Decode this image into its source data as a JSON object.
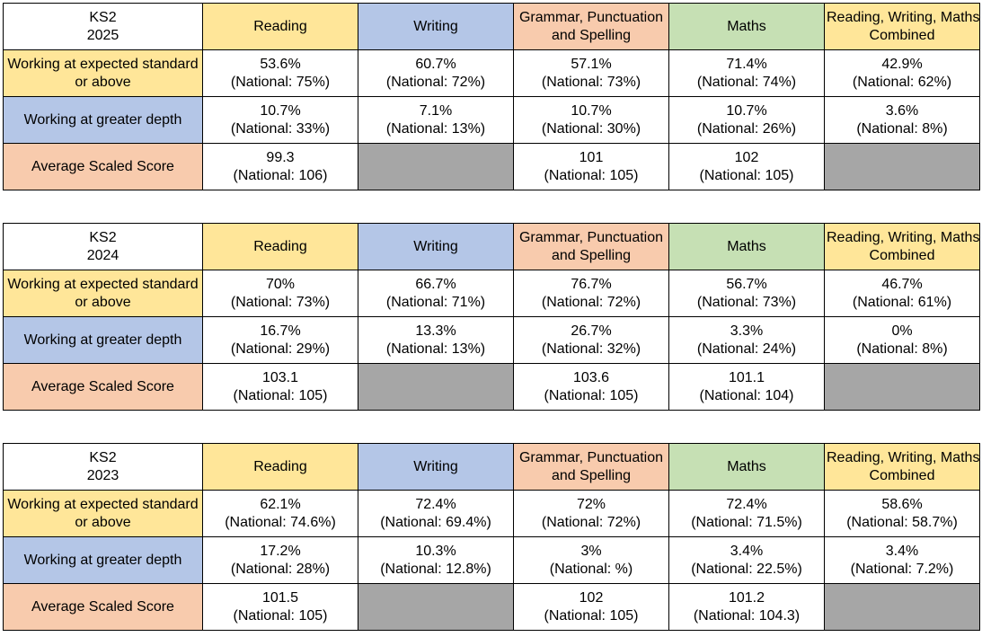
{
  "tables": [
    {
      "title_line1": "KS2",
      "title_line2": "2025",
      "headers": [
        {
          "line1": "Reading",
          "line2": ""
        },
        {
          "line1": "Writing",
          "line2": ""
        },
        {
          "line1": "Grammar, Punctuation",
          "line2": "and Spelling"
        },
        {
          "line1": "Maths",
          "line2": ""
        },
        {
          "line1": "Reading, Writing, Maths",
          "line2": "Combined"
        }
      ],
      "rows": [
        {
          "label_line1": "Working at expected standard",
          "label_line2": "or above",
          "cells": [
            {
              "value": "53.6%",
              "national": "(National: 75%)"
            },
            {
              "value": "60.7%",
              "national": "(National: 72%)"
            },
            {
              "value": "57.1%",
              "national": "(National: 73%)"
            },
            {
              "value": "71.4%",
              "national": "(National: 74%)"
            },
            {
              "value": "42.9%",
              "national": "(National: 62%)"
            }
          ]
        },
        {
          "label_line1": "Working at greater depth",
          "label_line2": "",
          "cells": [
            {
              "value": "10.7%",
              "national": "(National: 33%)"
            },
            {
              "value": "7.1%",
              "national": "(National: 13%)"
            },
            {
              "value": "10.7%",
              "national": "(National: 30%)"
            },
            {
              "value": "10.7%",
              "national": "(National: 26%)"
            },
            {
              "value": "3.6%",
              "national": "(National: 8%)"
            }
          ]
        },
        {
          "label_line1": "Average Scaled Score",
          "label_line2": "",
          "cells": [
            {
              "value": "99.3",
              "national": "(National: 106)"
            },
            {
              "value": "",
              "national": ""
            },
            {
              "value": "101",
              "national": "(National: 105)"
            },
            {
              "value": "102",
              "national": "(National: 105)"
            },
            {
              "value": "",
              "national": ""
            }
          ]
        }
      ]
    },
    {
      "title_line1": "KS2",
      "title_line2": "2024",
      "headers": [
        {
          "line1": "Reading",
          "line2": ""
        },
        {
          "line1": "Writing",
          "line2": ""
        },
        {
          "line1": "Grammar, Punctuation",
          "line2": "and Spelling"
        },
        {
          "line1": "Maths",
          "line2": ""
        },
        {
          "line1": "Reading, Writing, Maths",
          "line2": "Combined"
        }
      ],
      "rows": [
        {
          "label_line1": "Working at expected standard",
          "label_line2": "or above",
          "cells": [
            {
              "value": "70%",
              "national": "(National: 73%)"
            },
            {
              "value": "66.7%",
              "national": "(National: 71%)"
            },
            {
              "value": "76.7%",
              "national": "(National: 72%)"
            },
            {
              "value": "56.7%",
              "national": "(National: 73%)"
            },
            {
              "value": "46.7%",
              "national": "(National: 61%)"
            }
          ]
        },
        {
          "label_line1": "Working at greater depth",
          "label_line2": "",
          "cells": [
            {
              "value": "16.7%",
              "national": "(National: 29%)"
            },
            {
              "value": "13.3%",
              "national": "(National: 13%)"
            },
            {
              "value": "26.7%",
              "national": "(National: 32%)"
            },
            {
              "value": "3.3%",
              "national": "(National: 24%)"
            },
            {
              "value": "0%",
              "national": "(National: 8%)"
            }
          ]
        },
        {
          "label_line1": "Average Scaled Score",
          "label_line2": "",
          "cells": [
            {
              "value": "103.1",
              "national": "(National: 105)"
            },
            {
              "value": "",
              "national": ""
            },
            {
              "value": "103.6",
              "national": "(National: 105)"
            },
            {
              "value": "101.1",
              "national": "(National: 104)"
            },
            {
              "value": "",
              "national": ""
            }
          ]
        }
      ]
    },
    {
      "title_line1": "KS2",
      "title_line2": "2023",
      "headers": [
        {
          "line1": "Reading",
          "line2": ""
        },
        {
          "line1": "Writing",
          "line2": ""
        },
        {
          "line1": "Grammar, Punctuation",
          "line2": "and Spelling"
        },
        {
          "line1": "Maths",
          "line2": ""
        },
        {
          "line1": "Reading, Writing, Maths",
          "line2": "Combined"
        }
      ],
      "rows": [
        {
          "label_line1": "Working at expected standard",
          "label_line2": "or above",
          "cells": [
            {
              "value": "62.1%",
              "national": "(National: 74.6%)"
            },
            {
              "value": "72.4%",
              "national": "(National: 69.4%)"
            },
            {
              "value": "72%",
              "national": "(National: 72%)"
            },
            {
              "value": "72.4%",
              "national": "(National: 71.5%)"
            },
            {
              "value": "58.6%",
              "national": "(National: 58.7%)"
            }
          ]
        },
        {
          "label_line1": "Working at greater depth",
          "label_line2": "",
          "cells": [
            {
              "value": "17.2%",
              "national": "(National: 28%)"
            },
            {
              "value": "10.3%",
              "national": "(National: 12.8%)"
            },
            {
              "value": "3%",
              "national": "(National: %)"
            },
            {
              "value": "3.4%",
              "national": "(National: 22.5%)"
            },
            {
              "value": "3.4%",
              "national": "(National: 7.2%)"
            }
          ]
        },
        {
          "label_line1": "Average Scaled Score",
          "label_line2": "",
          "cells": [
            {
              "value": "101.5",
              "national": "(National: 105)"
            },
            {
              "value": "",
              "national": ""
            },
            {
              "value": "102",
              "national": "(National: 105)"
            },
            {
              "value": "101.2",
              "national": "(National: 104.3)"
            },
            {
              "value": "",
              "national": ""
            }
          ]
        }
      ]
    }
  ],
  "colors": {
    "yellow": "#ffe699",
    "blue": "#b4c6e7",
    "peach": "#f8cbad",
    "green": "#c6e0b4",
    "grey": "#a6a6a6"
  }
}
